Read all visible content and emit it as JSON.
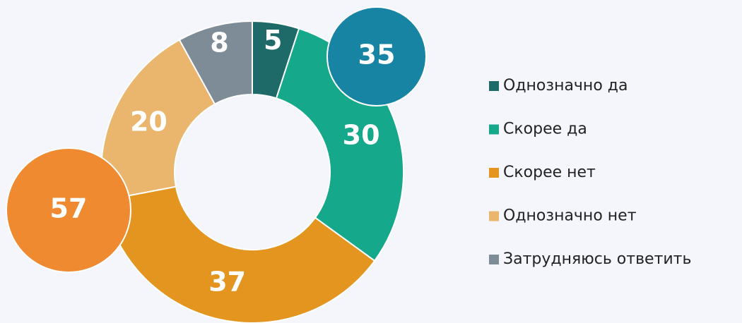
{
  "chart_data": {
    "type": "donut",
    "categories": [
      "Однозначно да",
      "Скорее да",
      "Скорее нет",
      "Однозначно нет",
      "Затрудняюсь ответить"
    ],
    "values": [
      5,
      30,
      37,
      20,
      8
    ],
    "colors": [
      "#1e6a68",
      "#16a88a",
      "#e3951f",
      "#eab56c",
      "#7d8c96"
    ],
    "annotations": [
      {
        "value": 35,
        "color": "#1784a3"
      },
      {
        "value": 57,
        "color": "#ef8a30"
      }
    ],
    "legend": "right"
  }
}
